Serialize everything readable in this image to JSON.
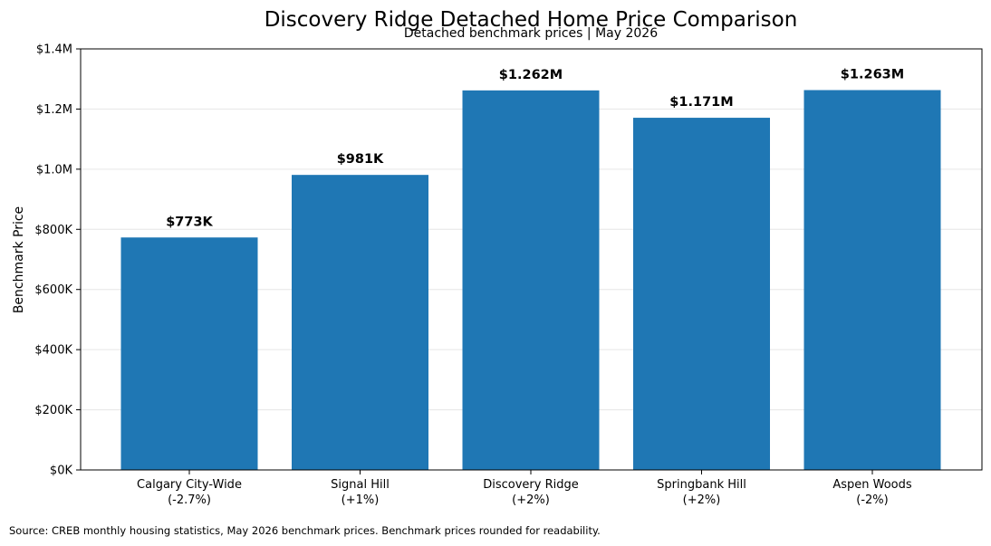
{
  "chart_data": {
    "type": "bar",
    "title": "Discovery Ridge Detached Home Price Comparison",
    "subtitle": "Detached benchmark prices | May 2026",
    "xlabel": "",
    "ylabel": "Benchmark Price",
    "ylim": [
      0,
      1400000
    ],
    "yticks": [
      0,
      200000,
      400000,
      600000,
      800000,
      1000000,
      1200000,
      1400000
    ],
    "ytick_labels": [
      "$0K",
      "$200K",
      "$400K",
      "$600K",
      "$800K",
      "$1.0M",
      "$1.2M",
      "$1.4M"
    ],
    "categories": [
      [
        "Calgary City-Wide",
        "(-2.7%)"
      ],
      [
        "Signal Hill",
        "(+1%)"
      ],
      [
        "Discovery Ridge",
        "(+2%)"
      ],
      [
        "Springbank Hill",
        "(+2%)"
      ],
      [
        "Aspen Woods",
        "(-2%)"
      ]
    ],
    "values": [
      773000,
      981000,
      1262000,
      1171000,
      1263000
    ],
    "data_labels": [
      "$773K",
      "$981K",
      "$1.262M",
      "$1.171M",
      "$1.263M"
    ],
    "bar_color": "#1f77b4",
    "grid": "horizontal",
    "legend": "none"
  },
  "footer": {
    "source": "Source: CREB monthly housing statistics, May 2026 benchmark prices. Benchmark prices rounded for readability."
  }
}
